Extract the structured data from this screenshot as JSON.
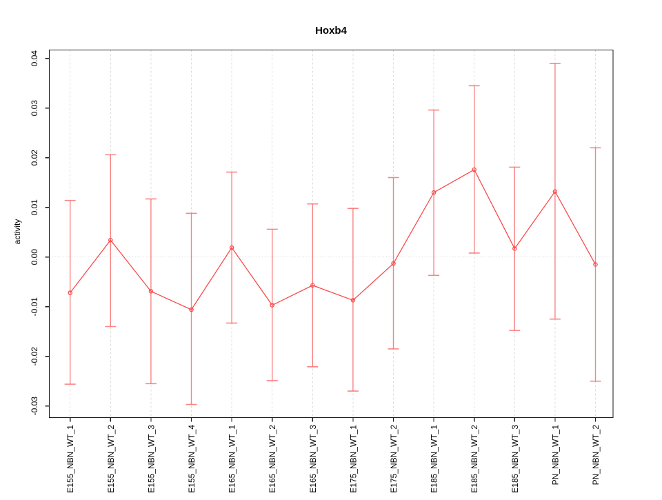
{
  "window": {
    "background": "#ffffff"
  },
  "chart": {
    "title": "Hoxb4",
    "ylabel": "activity",
    "xlabel": ""
  },
  "chart_data": {
    "type": "line",
    "title": "Hoxb4",
    "xlabel": "",
    "ylabel": "activity",
    "legend": "none",
    "marker": "open-circle",
    "point_color": "#f94b4b",
    "errorbar_color": "#f97070",
    "gridline_color": "#dcdcdc",
    "axis_color": "#1a1a1a",
    "grid": {
      "vertical": "dashed line at every category",
      "horizontal": "dotted line at y=0 only"
    },
    "ylim": [
      -0.0324,
      0.0417
    ],
    "y_ticks": [
      0.04,
      0.03,
      0.02,
      0.01,
      0.0,
      -0.01,
      -0.02,
      -0.03
    ],
    "categories": [
      "E155_NBN_WT_1",
      "E155_NBN_WT_2",
      "E155_NBN_WT_3",
      "E155_NBN_WT_4",
      "E165_NBN_WT_1",
      "E165_NBN_WT_2",
      "E165_NBN_WT_3",
      "E175_NBN_WT_1",
      "E175_NBN_WT_2",
      "E185_NBN_WT_1",
      "E185_NBN_WT_2",
      "E185_NBN_WT_3",
      "PN_NBN_WT_1",
      "PN_NBN_WT_2"
    ],
    "series": [
      {
        "name": "activity",
        "values": [
          -0.0072,
          0.0034,
          -0.0069,
          -0.0106,
          0.0019,
          -0.0097,
          -0.0057,
          -0.0087,
          -0.0013,
          0.013,
          0.0176,
          0.0017,
          0.0132,
          -0.0015
        ],
        "error_high": [
          0.0114,
          0.0206,
          0.0117,
          0.0088,
          0.0171,
          0.0056,
          0.0107,
          0.0098,
          0.016,
          0.0296,
          0.0345,
          0.0181,
          0.039,
          0.022
        ],
        "error_low": [
          -0.0256,
          -0.014,
          -0.0255,
          -0.0297,
          -0.0133,
          -0.0249,
          -0.0221,
          -0.027,
          -0.0185,
          -0.0037,
          0.0008,
          -0.0148,
          -0.0125,
          -0.025
        ]
      }
    ]
  }
}
